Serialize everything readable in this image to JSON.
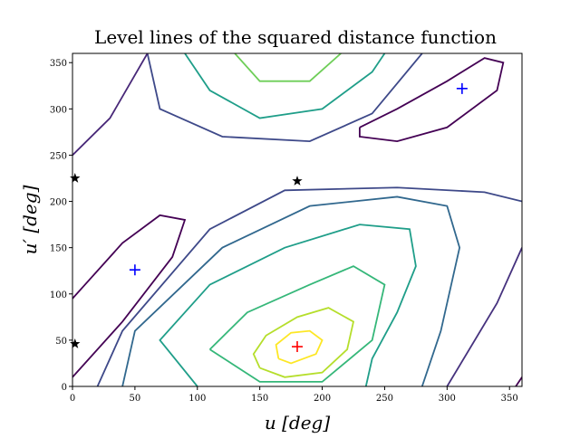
{
  "chart_data": {
    "type": "contour",
    "title": "Level lines of the squared distance function",
    "xlabel": "u [deg]",
    "ylabel": "u′ [deg]",
    "xlim": [
      0,
      360
    ],
    "ylim": [
      0,
      360
    ],
    "xticks": [
      0,
      50,
      100,
      150,
      200,
      250,
      300,
      350
    ],
    "yticks": [
      0,
      50,
      100,
      150,
      200,
      250,
      300,
      350
    ],
    "series": [
      {
        "color": "#fde725",
        "x": [
          165,
          175,
          195,
          200,
          190,
          175,
          163,
          165
        ],
        "y": [
          30,
          25,
          35,
          50,
          60,
          58,
          45,
          30
        ]
      },
      {
        "color": "#b5de2b",
        "x": [
          150,
          170,
          200,
          220,
          225,
          205,
          180,
          155,
          145,
          150
        ],
        "y": [
          20,
          10,
          15,
          40,
          70,
          85,
          75,
          55,
          35,
          20
        ]
      },
      {
        "color": "#35b779",
        "x": [
          110,
          150,
          200,
          240,
          250,
          225,
          190,
          140,
          110
        ],
        "y": [
          40,
          5,
          5,
          50,
          110,
          130,
          110,
          80,
          40
        ]
      },
      {
        "color": "#1f9e89",
        "x": [
          100,
          70,
          110,
          170,
          230,
          270,
          275,
          260,
          240,
          235
        ],
        "y": [
          0,
          50,
          110,
          150,
          175,
          170,
          130,
          80,
          30,
          0
        ]
      },
      {
        "color": "#31688e",
        "x": [
          40,
          50,
          120,
          190,
          260,
          300,
          310,
          295,
          280
        ],
        "y": [
          0,
          60,
          150,
          195,
          205,
          195,
          150,
          60,
          0
        ]
      },
      {
        "color": "#3e4989",
        "x": [
          20,
          40,
          110,
          170,
          260,
          330,
          360
        ],
        "y": [
          0,
          60,
          170,
          212,
          215,
          210,
          200
        ]
      },
      {
        "color": "#440154",
        "x": [
          0,
          40,
          80,
          90,
          70,
          40,
          10,
          0
        ],
        "y": [
          10,
          70,
          140,
          180,
          185,
          155,
          110,
          95
        ]
      },
      {
        "color": "#440154",
        "x": [
          230,
          260,
          300,
          330,
          345,
          340,
          300,
          260,
          230,
          230
        ],
        "y": [
          280,
          300,
          330,
          355,
          350,
          320,
          280,
          265,
          270,
          280
        ]
      },
      {
        "color": "#1f9e89",
        "x": [
          90,
          110,
          150,
          200,
          240,
          250
        ],
        "y": [
          360,
          320,
          290,
          300,
          340,
          360
        ]
      },
      {
        "color": "#6ece58",
        "x": [
          130,
          150,
          190,
          215
        ],
        "y": [
          360,
          330,
          330,
          360
        ]
      },
      {
        "color": "#3e4989",
        "x": [
          60,
          70,
          120,
          190,
          240,
          280
        ],
        "y": [
          360,
          300,
          270,
          265,
          295,
          360
        ]
      },
      {
        "color": "#482878",
        "x": [
          0,
          30,
          60
        ],
        "y": [
          250,
          290,
          360
        ]
      },
      {
        "color": "#46327e",
        "x": [
          300,
          340,
          360
        ],
        "y": [
          0,
          90,
          150
        ]
      },
      {
        "color": "#440154",
        "x": [
          355,
          360
        ],
        "y": [
          0,
          10
        ]
      }
    ],
    "markers": [
      {
        "marker": "plus",
        "color": "#0000ff",
        "x": [
          50,
          312
        ],
        "y": [
          126,
          322
        ]
      },
      {
        "marker": "plus",
        "color": "#ff0000",
        "x": [
          180
        ],
        "y": [
          43
        ]
      },
      {
        "marker": "star",
        "color": "#000000",
        "x": [
          2,
          180,
          2
        ],
        "y": [
          225,
          222,
          46
        ]
      }
    ]
  }
}
